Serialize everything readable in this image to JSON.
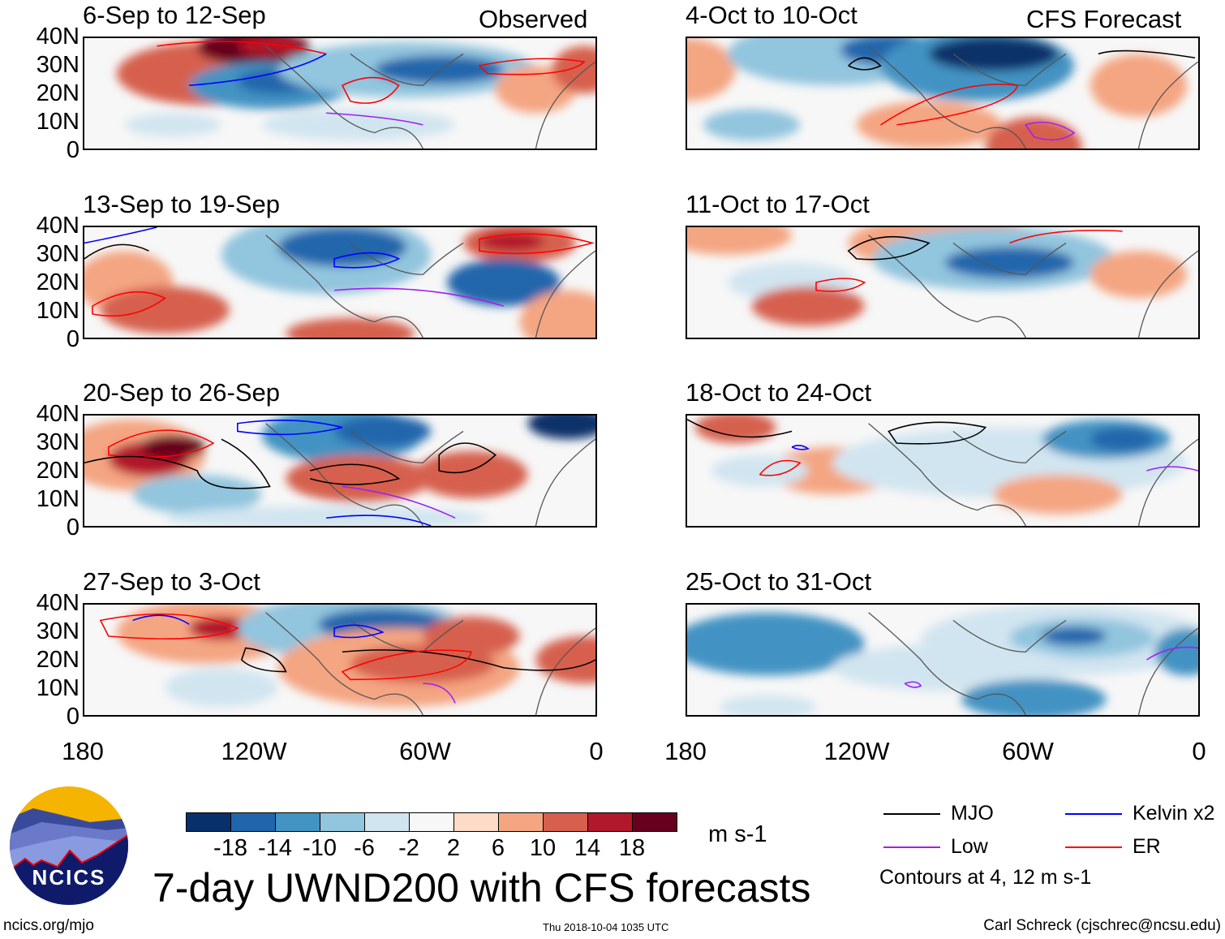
{
  "title": "7-day UWND200 with CFS forecasts",
  "observed_label": "Observed",
  "forecast_label": "CFS Forecast",
  "panels_left": [
    {
      "title": "6-Sep to 12-Sep"
    },
    {
      "title": "13-Sep to 19-Sep"
    },
    {
      "title": "20-Sep to 26-Sep"
    },
    {
      "title": "27-Sep to 3-Oct"
    }
  ],
  "panels_right": [
    {
      "title": "4-Oct to 10-Oct"
    },
    {
      "title": "11-Oct to 17-Oct"
    },
    {
      "title": "18-Oct to 24-Oct"
    },
    {
      "title": "25-Oct to 31-Oct"
    }
  ],
  "lat_labels": [
    "40N",
    "30N",
    "20N",
    "10N",
    "0"
  ],
  "lon_labels": [
    "180",
    "120W",
    "60W",
    "0"
  ],
  "colorbar": {
    "colors": [
      "#08306b",
      "#2166ac",
      "#4393c3",
      "#92c5de",
      "#d1e5f0",
      "#f7f7f7",
      "#fddbc7",
      "#f4a582",
      "#d6604d",
      "#b2182b",
      "#67001f"
    ],
    "labels": [
      "-18",
      "-14",
      "-10",
      "-6",
      "-2",
      "2",
      "6",
      "10",
      "14",
      "18"
    ],
    "units": "m s-1"
  },
  "legend": {
    "items": [
      {
        "label": "MJO",
        "color": "#000000"
      },
      {
        "label": "Kelvin x2",
        "color": "#0000ff"
      },
      {
        "label": "Low",
        "color": "#a020f0"
      },
      {
        "label": "ER",
        "color": "#ff0000"
      }
    ],
    "note": "Contours at 4, 12 m s-1"
  },
  "footer": {
    "site": "ncics.org/mjo",
    "timestamp": "Thu 2018-10-04 1035 UTC",
    "author": "Carl Schreck (cjschrec@ncsu.edu)"
  },
  "logo_text": "NCICS"
}
